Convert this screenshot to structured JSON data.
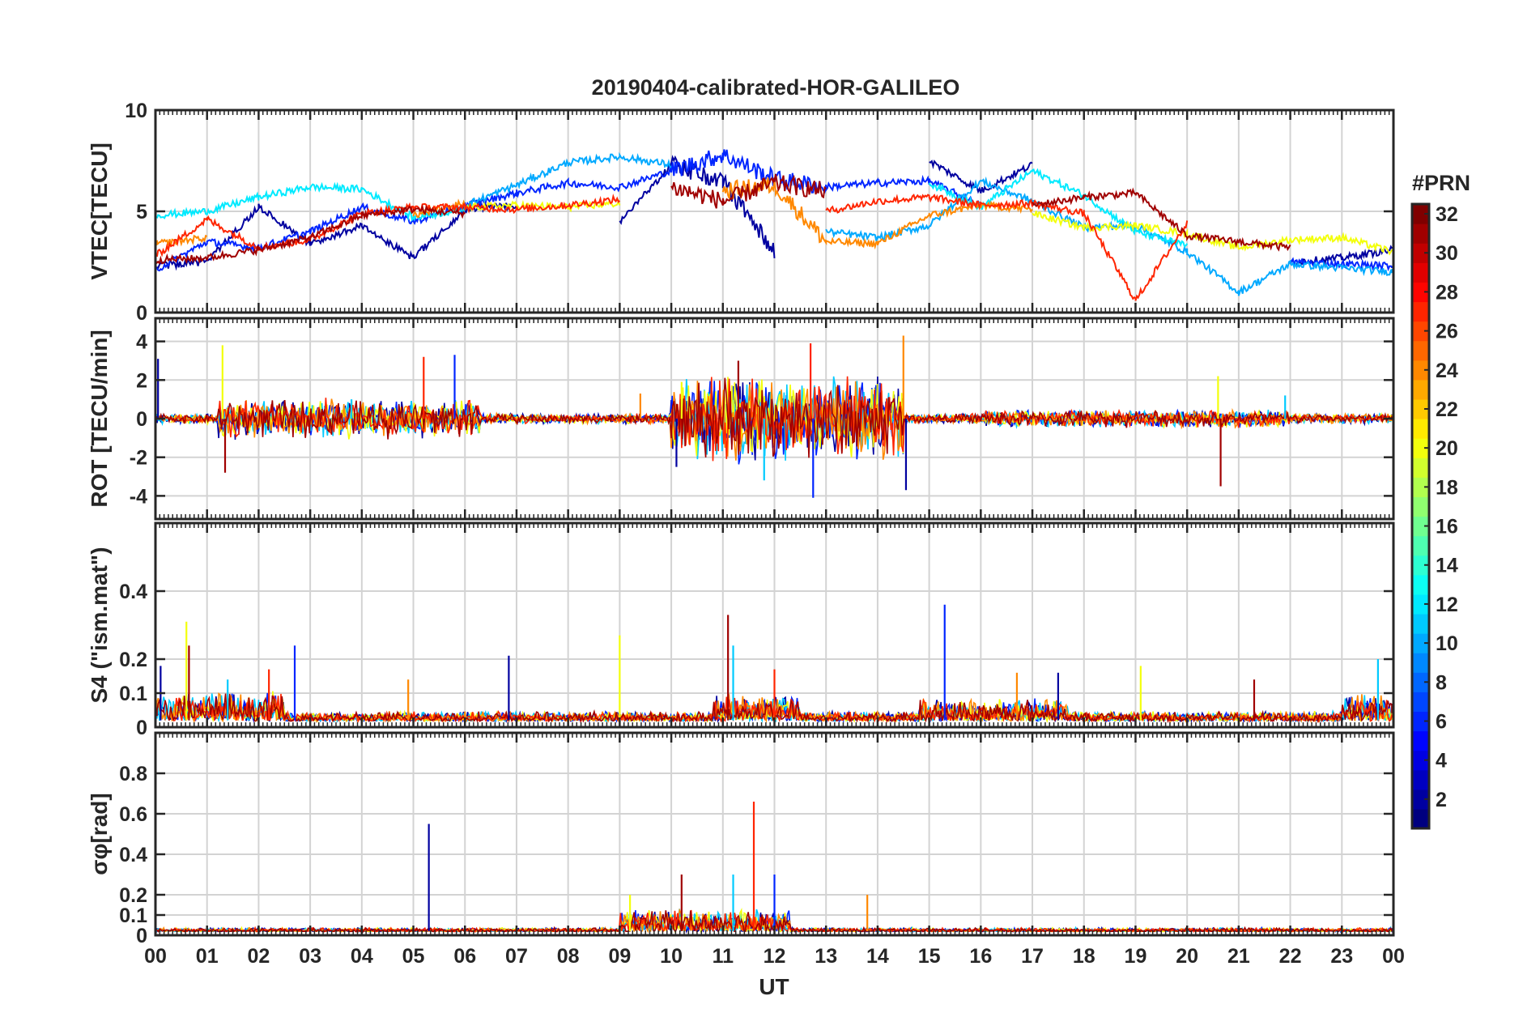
{
  "chart_data": [
    {
      "type": "line",
      "panel": "vtec",
      "title": "20190404-calibrated-HOR-GALILEO",
      "ylabel": "VTEC[TECU]",
      "xlabel": "",
      "xlim": [
        0,
        24
      ],
      "ylim": [
        0,
        10
      ],
      "yticks": [
        0,
        5,
        10
      ],
      "yticklabels": [
        "0",
        "5",
        "10"
      ],
      "x": [
        0,
        1,
        2,
        3,
        4,
        5,
        6,
        7,
        8,
        9,
        10,
        11,
        12,
        13,
        14,
        15,
        16,
        17,
        18,
        19,
        20,
        21,
        22,
        23,
        24
      ],
      "series": [
        {
          "name": "PRN 2 (approx.)",
          "color_value": 2,
          "values": [
            2.3,
            2.5,
            5.2,
            3.4,
            4.3,
            2.7,
            5.1,
            5.3,
            null,
            4.5,
            7.3,
            6.5,
            3.0,
            null,
            null,
            7.5,
            6.0,
            7.3,
            null,
            null,
            null,
            null,
            2.5,
            2.7,
            3.1
          ]
        },
        {
          "name": "PRN 6 (approx.)",
          "color_value": 6,
          "values": [
            2.1,
            3.5,
            3.2,
            4.0,
            5.2,
            4.5,
            5.3,
            5.9,
            6.4,
            6.2,
            7.0,
            7.8,
            6.6,
            6.2,
            6.4,
            6.5,
            5.3,
            null,
            null,
            null,
            null,
            null,
            2.5,
            2.4,
            2.3
          ]
        },
        {
          "name": "PRN 10 (approx.)",
          "color_value": 10,
          "values": [
            2.8,
            null,
            null,
            null,
            null,
            null,
            5.3,
            6.3,
            7.4,
            7.7,
            7.3,
            null,
            null,
            4.0,
            3.7,
            4.3,
            6.5,
            5.5,
            4.2,
            4.3,
            3.0,
            1.0,
            2.4,
            2.2,
            2.0
          ]
        },
        {
          "name": "PRN 12 (approx.)",
          "color_value": 12,
          "values": [
            4.8,
            5.0,
            5.7,
            6.2,
            6.1,
            4.7,
            5.1,
            null,
            null,
            null,
            null,
            null,
            null,
            null,
            null,
            6.4,
            5.2,
            7.0,
            5.8,
            4.0,
            3.3,
            null,
            null,
            null,
            null
          ]
        },
        {
          "name": "PRN 20 (approx.)",
          "color_value": 20,
          "values": [
            null,
            null,
            null,
            null,
            null,
            null,
            5.2,
            5.3,
            5.2,
            5.4,
            null,
            null,
            null,
            null,
            null,
            null,
            null,
            4.9,
            4.2,
            4.3,
            3.9,
            3.2,
            3.6,
            3.7,
            3.0
          ]
        },
        {
          "name": "PRN 24 (approx.)",
          "color_value": 24,
          "values": [
            3.4,
            3.7,
            null,
            null,
            null,
            4.8,
            5.4,
            null,
            null,
            null,
            null,
            6.0,
            6.3,
            3.5,
            3.4,
            4.8,
            5.3,
            5.1,
            null,
            null,
            null,
            null,
            null,
            null,
            null
          ]
        },
        {
          "name": "PRN 27 (approx.)",
          "color_value": 27,
          "values": [
            2.8,
            4.6,
            3.2,
            3.6,
            4.9,
            5.2,
            5.2,
            5.1,
            5.3,
            5.6,
            null,
            null,
            null,
            5.0,
            5.5,
            5.7,
            5.3,
            5.4,
            4.9,
            0.6,
            4.4,
            null,
            null,
            null,
            null
          ]
        },
        {
          "name": "PRN 31 (approx.)",
          "color_value": 31,
          "values": [
            2.6,
            2.7,
            3.1,
            3.7,
            4.8,
            5.1,
            4.9,
            null,
            null,
            null,
            6.2,
            5.5,
            6.4,
            6.0,
            null,
            null,
            null,
            5.3,
            5.7,
            5.9,
            3.8,
            3.5,
            3.2,
            null,
            null
          ]
        }
      ]
    },
    {
      "type": "line",
      "panel": "rot",
      "title": "",
      "ylabel": "ROT [TECU/min]",
      "xlim": [
        0,
        24
      ],
      "ylim": [
        -5.2,
        5.2
      ],
      "yticks": [
        -4,
        -2,
        0,
        2,
        4
      ],
      "yticklabels": [
        "-4",
        "-2",
        "0",
        "2",
        "4"
      ],
      "x": [
        0.05,
        1.3,
        1.35,
        3.8,
        5.2,
        5.8,
        9.4,
        10.1,
        10.2,
        11.3,
        11.8,
        12.7,
        12.75,
        14.5,
        14.55,
        20.6,
        20.65,
        21.9
      ],
      "values": [
        3.1,
        3.8,
        -2.8,
        1.0,
        3.2,
        3.3,
        1.3,
        -2.5,
        1.9,
        3.0,
        -3.2,
        3.9,
        -4.1,
        4.3,
        -3.7,
        2.2,
        -3.5,
        1.2
      ]
    },
    {
      "type": "line",
      "panel": "s4",
      "title": "",
      "ylabel": "S4 (\"ism.mat\")",
      "xlim": [
        0,
        24
      ],
      "ylim": [
        0,
        0.6
      ],
      "yticks": [
        0,
        0.1,
        0.2,
        0.4
      ],
      "yticklabels": [
        "0",
        "0.1",
        "0.2",
        "0.4"
      ],
      "x": [
        0.1,
        0.6,
        0.65,
        1.4,
        2.2,
        2.7,
        4.9,
        6.85,
        9.0,
        11.1,
        11.2,
        12.0,
        15.3,
        16.7,
        17.5,
        19.1,
        21.3,
        23.7,
        24.0
      ],
      "values": [
        0.18,
        0.31,
        0.24,
        0.14,
        0.17,
        0.24,
        0.14,
        0.21,
        0.27,
        0.33,
        0.24,
        0.17,
        0.36,
        0.16,
        0.16,
        0.18,
        0.14,
        0.2,
        0.15
      ]
    },
    {
      "type": "line",
      "panel": "sigma_phi",
      "title": "",
      "ylabel": "σφ[rad]",
      "xlabel": "UT",
      "xlim": [
        0,
        24
      ],
      "ylim": [
        0,
        1.0
      ],
      "yticks": [
        0,
        0.1,
        0.2,
        0.4,
        0.6,
        0.8
      ],
      "yticklabels": [
        "0",
        "0.1",
        "0.2",
        "0.4",
        "0.6",
        "0.8"
      ],
      "xticks": [
        0,
        1,
        2,
        3,
        4,
        5,
        6,
        7,
        8,
        9,
        10,
        11,
        12,
        13,
        14,
        15,
        16,
        17,
        18,
        19,
        20,
        21,
        22,
        23,
        24
      ],
      "xticklabels": [
        "00",
        "01",
        "02",
        "03",
        "04",
        "05",
        "06",
        "07",
        "08",
        "09",
        "10",
        "11",
        "12",
        "13",
        "14",
        "15",
        "16",
        "17",
        "18",
        "19",
        "20",
        "21",
        "22",
        "23",
        "00"
      ],
      "x": [
        5.3,
        9.2,
        10.2,
        11.2,
        11.6,
        12.0,
        13.8
      ],
      "values": [
        0.55,
        0.2,
        0.3,
        0.3,
        0.66,
        0.3,
        0.2
      ]
    }
  ],
  "colorbar": {
    "title": "#PRN",
    "min": 1,
    "max": 32,
    "ticks": [
      "2",
      "4",
      "6",
      "8",
      "10",
      "12",
      "14",
      "16",
      "18",
      "20",
      "22",
      "24",
      "26",
      "28",
      "30",
      "32"
    ],
    "colormap": "jet"
  }
}
